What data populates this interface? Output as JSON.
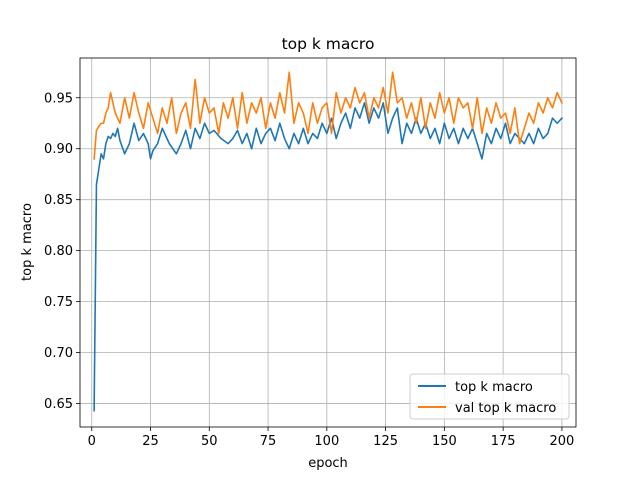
{
  "chart_data": {
    "type": "line",
    "title": "top k macro",
    "xlabel": "epoch",
    "ylabel": "top k macro",
    "xlim": [
      -5,
      206
    ],
    "ylim": [
      0.627,
      0.989
    ],
    "xticks": [
      0,
      25,
      50,
      75,
      100,
      125,
      150,
      175,
      200
    ],
    "yticks": [
      0.65,
      0.7,
      0.75,
      0.8,
      0.85,
      0.9,
      0.95
    ],
    "ytick_labels": [
      "0.65",
      "0.70",
      "0.75",
      "0.80",
      "0.85",
      "0.90",
      "0.95"
    ],
    "grid": true,
    "legend_position": "lower-right",
    "series": [
      {
        "name": "top k macro",
        "color": "#1f77b4",
        "x": [
          1,
          2,
          3,
          4,
          5,
          6,
          7,
          8,
          9,
          10,
          11,
          12,
          14,
          16,
          18,
          20,
          22,
          24,
          25,
          26,
          28,
          30,
          33,
          36,
          38,
          40,
          42,
          44,
          46,
          48,
          50,
          52,
          55,
          58,
          60,
          62,
          64,
          66,
          68,
          70,
          72,
          74,
          76,
          78,
          80,
          82,
          84,
          86,
          88,
          90,
          92,
          94,
          96,
          98,
          100,
          102,
          104,
          106,
          108,
          110,
          112,
          114,
          116,
          118,
          120,
          122,
          124,
          126,
          128,
          130,
          132,
          134,
          136,
          138,
          140,
          142,
          144,
          146,
          148,
          150,
          152,
          154,
          156,
          158,
          160,
          162,
          164,
          166,
          168,
          170,
          172,
          174,
          176,
          178,
          180,
          182,
          184,
          186,
          188,
          190,
          192,
          194,
          196,
          198,
          200
        ],
        "y": [
          0.643,
          0.865,
          0.88,
          0.895,
          0.89,
          0.905,
          0.912,
          0.91,
          0.915,
          0.912,
          0.92,
          0.908,
          0.895,
          0.905,
          0.925,
          0.908,
          0.915,
          0.905,
          0.89,
          0.898,
          0.905,
          0.92,
          0.905,
          0.895,
          0.905,
          0.918,
          0.9,
          0.92,
          0.91,
          0.925,
          0.915,
          0.918,
          0.91,
          0.905,
          0.91,
          0.918,
          0.905,
          0.915,
          0.9,
          0.92,
          0.905,
          0.915,
          0.92,
          0.908,
          0.925,
          0.91,
          0.9,
          0.915,
          0.905,
          0.92,
          0.905,
          0.915,
          0.91,
          0.925,
          0.915,
          0.93,
          0.91,
          0.925,
          0.935,
          0.92,
          0.94,
          0.93,
          0.945,
          0.925,
          0.94,
          0.93,
          0.945,
          0.915,
          0.93,
          0.94,
          0.905,
          0.925,
          0.915,
          0.93,
          0.915,
          0.925,
          0.91,
          0.92,
          0.905,
          0.925,
          0.91,
          0.92,
          0.905,
          0.92,
          0.91,
          0.92,
          0.905,
          0.89,
          0.915,
          0.905,
          0.92,
          0.91,
          0.925,
          0.905,
          0.915,
          0.91,
          0.905,
          0.915,
          0.905,
          0.92,
          0.91,
          0.915,
          0.93,
          0.925,
          0.93
        ]
      },
      {
        "name": "val top k macro",
        "color": "#ff7f0e",
        "x": [
          1,
          2,
          3,
          4,
          5,
          6,
          7,
          8,
          9,
          10,
          12,
          14,
          16,
          18,
          20,
          22,
          24,
          26,
          28,
          30,
          32,
          34,
          36,
          38,
          40,
          42,
          44,
          46,
          48,
          50,
          52,
          54,
          56,
          58,
          60,
          62,
          64,
          66,
          68,
          70,
          72,
          74,
          76,
          78,
          80,
          82,
          84,
          86,
          88,
          90,
          92,
          94,
          96,
          98,
          100,
          102,
          104,
          106,
          108,
          110,
          112,
          114,
          116,
          118,
          120,
          122,
          124,
          126,
          128,
          130,
          132,
          134,
          136,
          138,
          140,
          142,
          144,
          146,
          148,
          150,
          152,
          154,
          156,
          158,
          160,
          162,
          164,
          166,
          168,
          170,
          172,
          174,
          176,
          178,
          180,
          182,
          184,
          186,
          188,
          190,
          192,
          194,
          196,
          198,
          200
        ],
        "y": [
          0.89,
          0.918,
          0.922,
          0.925,
          0.925,
          0.935,
          0.94,
          0.955,
          0.945,
          0.935,
          0.925,
          0.95,
          0.93,
          0.955,
          0.935,
          0.92,
          0.945,
          0.93,
          0.915,
          0.94,
          0.925,
          0.95,
          0.915,
          0.935,
          0.945,
          0.92,
          0.968,
          0.925,
          0.95,
          0.935,
          0.94,
          0.915,
          0.945,
          0.93,
          0.95,
          0.92,
          0.955,
          0.925,
          0.945,
          0.935,
          0.95,
          0.92,
          0.945,
          0.93,
          0.955,
          0.935,
          0.975,
          0.925,
          0.945,
          0.935,
          0.915,
          0.945,
          0.925,
          0.94,
          0.945,
          0.915,
          0.955,
          0.935,
          0.95,
          0.94,
          0.96,
          0.945,
          0.955,
          0.93,
          0.95,
          0.94,
          0.96,
          0.935,
          0.975,
          0.945,
          0.95,
          0.93,
          0.945,
          0.925,
          0.95,
          0.92,
          0.945,
          0.93,
          0.955,
          0.935,
          0.95,
          0.925,
          0.95,
          0.94,
          0.945,
          0.92,
          0.95,
          0.915,
          0.94,
          0.925,
          0.945,
          0.93,
          0.935,
          0.915,
          0.94,
          0.905,
          0.92,
          0.935,
          0.925,
          0.945,
          0.935,
          0.95,
          0.94,
          0.955,
          0.945
        ]
      }
    ]
  }
}
